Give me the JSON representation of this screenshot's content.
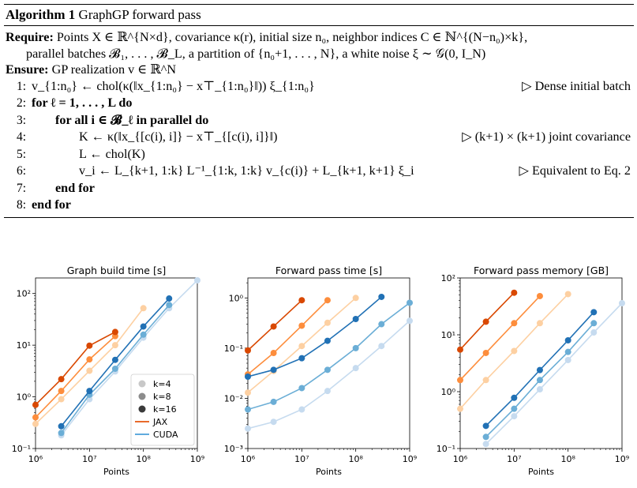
{
  "algorithm": {
    "title_bold": "Algorithm 1",
    "title_rest": "GraphGP forward pass",
    "require_label": "Require:",
    "require_line1": "Points X ∈ ℝ^{N×d}, covariance κ(r), initial size n₀, neighbor indices C ∈ ℕ^{(N−n₀)×k},",
    "require_line2": "parallel batches 𝓑₁, . . . , 𝓑_L, a partition of {n₀+1, . . . , N}, a white noise ξ ∼ 𝒢(0, I_N)",
    "ensure_label": "Ensure:",
    "ensure_line": "GP realization v ∈ ℝ^N",
    "lines": [
      {
        "num": "1:",
        "text": "v_{1:n₀} ← chol(κ(‖x_{1:n₀} − x⊤_{1:n₀}‖)) ξ_{1:n₀}",
        "comment": "▷ Dense initial batch"
      },
      {
        "num": "2:",
        "text": "for ℓ = 1, . . . , L do",
        "comment": ""
      },
      {
        "num": "3:",
        "text": "for all i ∈ 𝓑_ℓ in parallel do",
        "comment": ""
      },
      {
        "num": "4:",
        "text": "K ← κ(‖x_{[c(i), i]} − x⊤_{[c(i), i]}‖)",
        "comment": "▷ (k+1) × (k+1) joint covariance"
      },
      {
        "num": "5:",
        "text": "L ← chol(K)",
        "comment": ""
      },
      {
        "num": "6:",
        "text": "v_i ← L_{k+1, 1:k} L⁻¹_{1:k, 1:k} v_{c(i)} + L_{k+1, k+1} ξ_i",
        "comment": "▷ Equivalent to Eq. 2"
      },
      {
        "num": "7:",
        "text": "end for",
        "comment": ""
      },
      {
        "num": "8:",
        "text": "end for",
        "comment": ""
      }
    ]
  },
  "legend": {
    "entries": [
      "k=4",
      "k=8",
      "k=16",
      "JAX",
      "CUDA"
    ]
  },
  "colors": {
    "jax": [
      "#fdd0a2",
      "#fd8d3c",
      "#d94801"
    ],
    "cuda": [
      "#c6dbef",
      "#6baed6",
      "#2171b5"
    ],
    "legend_gray": [
      "#c8c8c8",
      "#8c8c8c",
      "#3a3a3a"
    ],
    "jax_legend": "#e6550d",
    "cuda_legend": "#4a9fd8"
  },
  "chart_data": [
    {
      "type": "line",
      "title": "Graph build time [s]",
      "xlabel": "Points",
      "ylabel": "",
      "xscale": "log",
      "yscale": "log",
      "xlim": [
        1000000,
        1000000000
      ],
      "ylim": [
        0.1,
        200
      ],
      "xticks": [
        "10⁶",
        "10⁷",
        "10⁸",
        "10⁹"
      ],
      "yticks": [
        "10⁻¹",
        "10⁰",
        "10¹",
        "10²"
      ],
      "legend": "center-right",
      "series": [
        {
          "backend": "JAX",
          "k": 4,
          "x": [
            1000000,
            3000000,
            10000000,
            30000000,
            100000000
          ],
          "y": [
            0.3,
            0.9,
            3.2,
            10,
            52
          ]
        },
        {
          "backend": "JAX",
          "k": 8,
          "x": [
            1000000,
            3000000,
            10000000,
            30000000
          ],
          "y": [
            0.4,
            1.3,
            5.3,
            15
          ]
        },
        {
          "backend": "JAX",
          "k": 16,
          "x": [
            1000000,
            3000000,
            10000000,
            30000000
          ],
          "y": [
            0.7,
            2.2,
            9.8,
            18
          ]
        },
        {
          "backend": "CUDA",
          "k": 4,
          "x": [
            3000000,
            10000000,
            30000000,
            100000000,
            300000000,
            1000000000
          ],
          "y": [
            0.18,
            0.9,
            3.1,
            14,
            52,
            180
          ]
        },
        {
          "backend": "CUDA",
          "k": 8,
          "x": [
            3000000,
            10000000,
            30000000,
            100000000,
            300000000
          ],
          "y": [
            0.2,
            1.1,
            3.5,
            16,
            60
          ]
        },
        {
          "backend": "CUDA",
          "k": 16,
          "x": [
            3000000,
            10000000,
            30000000,
            100000000,
            300000000
          ],
          "y": [
            0.27,
            1.3,
            5.2,
            23,
            80
          ]
        }
      ]
    },
    {
      "type": "line",
      "title": "Forward pass time [s]",
      "xlabel": "Points",
      "ylabel": "",
      "xscale": "log",
      "yscale": "log",
      "xlim": [
        1000000,
        1000000000
      ],
      "ylim": [
        0.001,
        2.5
      ],
      "xticks": [
        "10⁶",
        "10⁷",
        "10⁸",
        "10⁹"
      ],
      "yticks": [
        "10⁻³",
        "10⁻²",
        "10⁻¹",
        "10⁰"
      ],
      "series": [
        {
          "backend": "JAX",
          "k": 4,
          "x": [
            1000000,
            3000000,
            10000000,
            30000000,
            100000000
          ],
          "y": [
            0.013,
            0.035,
            0.11,
            0.32,
            1.0
          ]
        },
        {
          "backend": "JAX",
          "k": 8,
          "x": [
            1000000,
            3000000,
            10000000,
            30000000
          ],
          "y": [
            0.03,
            0.08,
            0.28,
            0.9
          ]
        },
        {
          "backend": "JAX",
          "k": 16,
          "x": [
            1000000,
            3000000,
            10000000
          ],
          "y": [
            0.09,
            0.27,
            0.9
          ]
        },
        {
          "backend": "CUDA",
          "k": 4,
          "x": [
            1000000,
            3000000,
            10000000,
            30000000,
            100000000,
            300000000,
            1000000000
          ],
          "y": [
            0.0025,
            0.0034,
            0.006,
            0.014,
            0.04,
            0.11,
            0.35
          ]
        },
        {
          "backend": "CUDA",
          "k": 8,
          "x": [
            1000000,
            3000000,
            10000000,
            30000000,
            100000000,
            300000000,
            1000000000
          ],
          "y": [
            0.006,
            0.0085,
            0.016,
            0.037,
            0.1,
            0.3,
            0.8
          ]
        },
        {
          "backend": "CUDA",
          "k": 16,
          "x": [
            1000000,
            3000000,
            10000000,
            30000000,
            100000000,
            300000000
          ],
          "y": [
            0.027,
            0.037,
            0.063,
            0.14,
            0.38,
            1.05
          ]
        }
      ]
    },
    {
      "type": "line",
      "title": "Forward pass memory [GB]",
      "xlabel": "Points",
      "ylabel": "",
      "xscale": "log",
      "yscale": "log",
      "xlim": [
        1000000,
        1000000000
      ],
      "ylim": [
        0.1,
        100
      ],
      "xticks": [
        "10⁶",
        "10⁷",
        "10⁸",
        "10⁹"
      ],
      "yticks": [
        "10⁻¹",
        "10⁰",
        "10¹",
        "10²"
      ],
      "series": [
        {
          "backend": "JAX",
          "k": 4,
          "x": [
            1000000,
            3000000,
            10000000,
            30000000,
            100000000
          ],
          "y": [
            0.5,
            1.6,
            5.2,
            16,
            52
          ]
        },
        {
          "backend": "JAX",
          "k": 8,
          "x": [
            1000000,
            3000000,
            10000000,
            30000000
          ],
          "y": [
            1.6,
            4.8,
            16,
            48
          ]
        },
        {
          "backend": "JAX",
          "k": 16,
          "x": [
            1000000,
            3000000,
            10000000
          ],
          "y": [
            5.5,
            17,
            55
          ]
        },
        {
          "backend": "CUDA",
          "k": 4,
          "x": [
            3000000,
            10000000,
            30000000,
            100000000,
            300000000,
            1000000000
          ],
          "y": [
            0.12,
            0.37,
            1.1,
            3.6,
            11,
            36
          ]
        },
        {
          "backend": "CUDA",
          "k": 8,
          "x": [
            3000000,
            10000000,
            30000000,
            100000000,
            300000000
          ],
          "y": [
            0.16,
            0.5,
            1.6,
            5,
            16
          ]
        },
        {
          "backend": "CUDA",
          "k": 16,
          "x": [
            3000000,
            10000000,
            30000000,
            100000000,
            300000000
          ],
          "y": [
            0.25,
            0.78,
            2.4,
            8,
            25
          ]
        }
      ]
    }
  ]
}
